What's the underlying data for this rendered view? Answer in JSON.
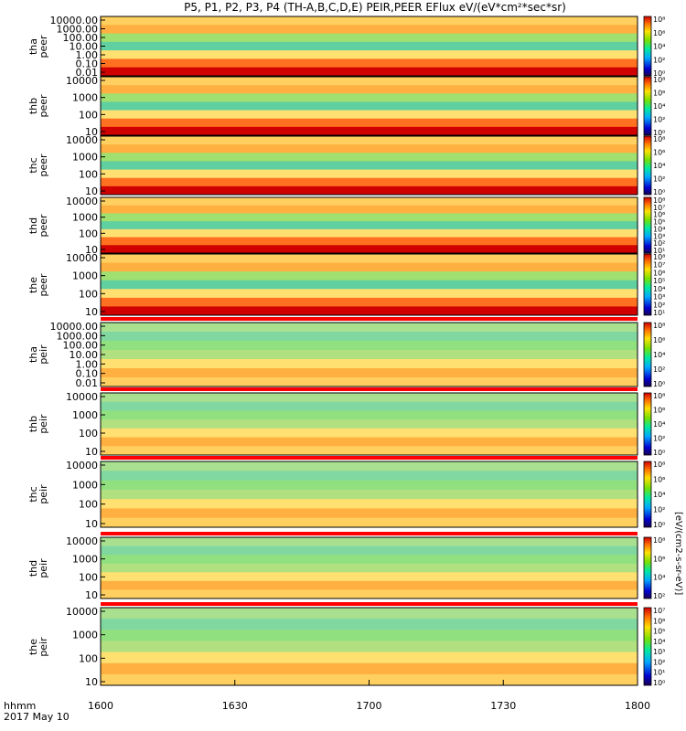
{
  "title": "P5, P1, P2, P3, P4 (TH-A,B,C,D,E) PEIR,PEER EFlux eV/(eV*cm²*sec*sr)",
  "footer": {
    "var_label": "hhmm",
    "date": "2017 May 10"
  },
  "colorbar_label": "[eV/(cm2-s-sr-eV)]",
  "chart_data": {
    "type": "heatmap",
    "x_ticks": [
      "1600",
      "1630",
      "1700",
      "1730",
      "1800"
    ],
    "xlim": [
      "16:00",
      "18:00"
    ],
    "panels": [
      {
        "probe": "tha",
        "species": "peer",
        "yticks": [
          "10000.00",
          "1000.00",
          "100.00",
          "10.00",
          "1.00",
          "0.10",
          "0.01"
        ],
        "cbar_ticks": [
          "10⁸",
          "10⁶",
          "10⁴",
          "10²",
          "10⁰"
        ]
      },
      {
        "probe": "thb",
        "species": "peer",
        "yticks": [
          "10000",
          "1000",
          "100",
          "10"
        ],
        "cbar_ticks": [
          "10⁸",
          "10⁶",
          "10⁴",
          "10²",
          "10⁰"
        ]
      },
      {
        "probe": "thc",
        "species": "peer",
        "yticks": [
          "10000",
          "1000",
          "100",
          "10"
        ],
        "cbar_ticks": [
          "10⁸",
          "10⁶",
          "10⁴",
          "10²",
          "10⁰"
        ]
      },
      {
        "probe": "thd",
        "species": "peer",
        "yticks": [
          "10000",
          "1000",
          "100",
          "10"
        ],
        "cbar_ticks": [
          "10⁸",
          "10⁷",
          "10⁶",
          "10⁵",
          "10⁴",
          "10³",
          "10²",
          "10¹"
        ]
      },
      {
        "probe": "the",
        "species": "peer",
        "yticks": [
          "10000",
          "1000",
          "100",
          "10"
        ],
        "cbar_ticks": [
          "10⁸",
          "10⁷",
          "10⁶",
          "10⁵",
          "10⁴",
          "10³",
          "10²",
          "10¹"
        ]
      },
      {
        "probe": "tha",
        "species": "peir",
        "yticks": [
          "10000.00",
          "1000.00",
          "100.00",
          "10.00",
          "1.00",
          "0.10",
          "0.01"
        ],
        "cbar_ticks": [
          "10⁸",
          "10⁶",
          "10⁴",
          "10²",
          "10⁰"
        ]
      },
      {
        "probe": "thb",
        "species": "peir",
        "yticks": [
          "10000",
          "1000",
          "100",
          "10"
        ],
        "cbar_ticks": [
          "10⁸",
          "10⁶",
          "10⁴",
          "10²",
          "10⁰"
        ]
      },
      {
        "probe": "thc",
        "species": "peir",
        "yticks": [
          "10000",
          "1000",
          "100",
          "10"
        ],
        "cbar_ticks": [
          "10⁸",
          "10⁶",
          "10⁴",
          "10²",
          "10⁰"
        ]
      },
      {
        "probe": "thd",
        "species": "peir",
        "yticks": [
          "10000",
          "1000",
          "100",
          "10"
        ],
        "cbar_ticks": [
          "10⁸",
          "10⁶",
          "10⁴",
          "10²"
        ]
      },
      {
        "probe": "the",
        "species": "peir",
        "yticks": [
          "10000",
          "1000",
          "100",
          "10"
        ],
        "cbar_ticks": [
          "10⁷",
          "10⁶",
          "10⁵",
          "10⁴",
          "10³",
          "10²",
          "10¹",
          "10⁰"
        ]
      }
    ]
  }
}
